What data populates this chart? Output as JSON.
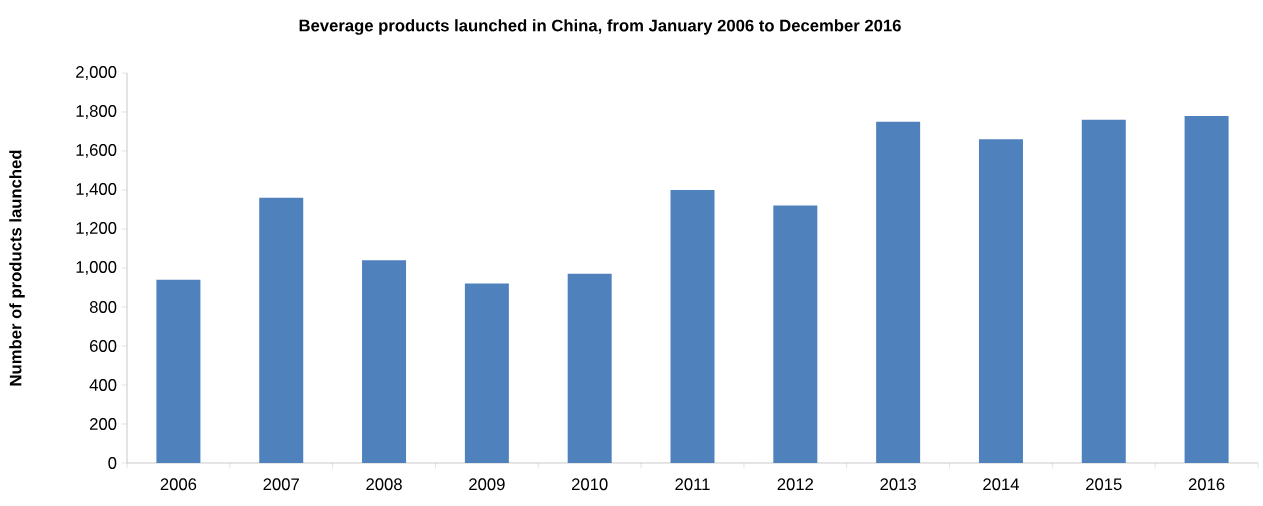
{
  "chart_data": {
    "type": "bar",
    "title": "Beverage products launched in China, from January 2006 to December 2016",
    "ylabel": "Number of products launched",
    "categories": [
      "2006",
      "2007",
      "2008",
      "2009",
      "2010",
      "2011",
      "2012",
      "2013",
      "2014",
      "2015",
      "2016"
    ],
    "values": [
      940,
      1360,
      1040,
      920,
      970,
      1400,
      1320,
      1750,
      1660,
      1760,
      1780
    ],
    "color": "#4f81bd",
    "ylim": [
      0,
      2000
    ],
    "yticks": [
      0,
      200,
      400,
      600,
      800,
      {
        "value": 1000,
        "label": "1,000"
      },
      {
        "value": 1200,
        "label": "1,200"
      },
      {
        "value": 1400,
        "label": "1,400"
      },
      {
        "value": 1600,
        "label": "1,600"
      },
      {
        "value": 1800,
        "label": "1,800"
      },
      {
        "value": 2000,
        "label": "2,000"
      }
    ],
    "grid": false
  }
}
